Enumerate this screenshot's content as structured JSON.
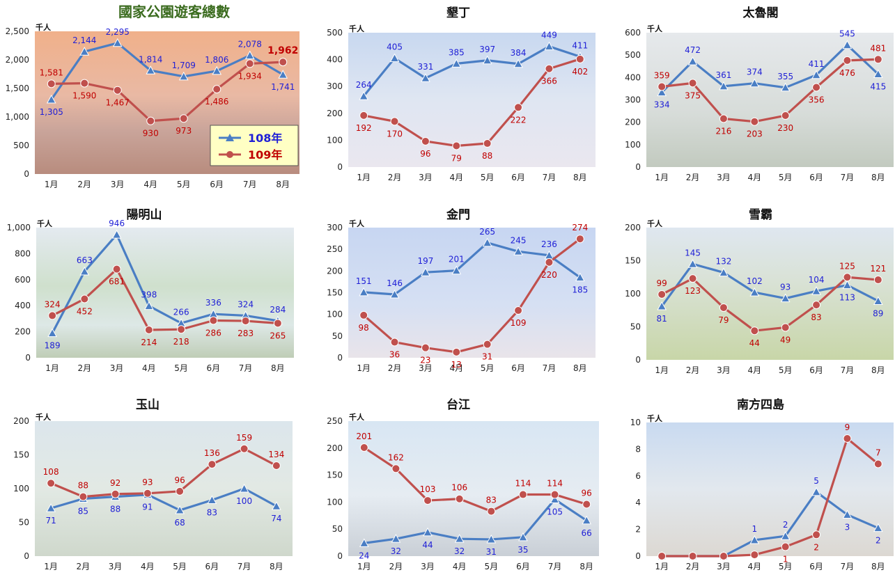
{
  "page": {
    "title": "國家公園遊客總數"
  },
  "colors": {
    "s108": "#4a7ec4",
    "s109": "#c0504d",
    "label108": "#1f1fd6",
    "label109": "#c00000"
  },
  "legend": {
    "s108": "108年",
    "s109": "109年"
  },
  "unit": "千人",
  "chart_data": [
    {
      "type": "line",
      "title": "國家公園遊客總數",
      "categories": [
        "1月",
        "2月",
        "3月",
        "4月",
        "5月",
        "6月",
        "7月",
        "8月"
      ],
      "ylim": [
        0,
        2500
      ],
      "yticks": [
        "0",
        "500",
        "1,000",
        "1,500",
        "2,000",
        "2,500"
      ],
      "series": [
        {
          "name": "108年",
          "values": [
            1305,
            2144,
            2295,
            1814,
            1709,
            1806,
            2078,
            1741
          ],
          "labels": [
            "1,305",
            "2,144",
            "2,295",
            "1,814",
            "1,709",
            "1,806",
            "2,078",
            "1,741"
          ]
        },
        {
          "name": "109年",
          "values": [
            1581,
            1590,
            1467,
            930,
            973,
            1486,
            1934,
            1962
          ],
          "labels": [
            "1,581",
            "1,590",
            "1,467",
            "930",
            "973",
            "1,486",
            "1,934",
            "1,962"
          ]
        }
      ]
    },
    {
      "type": "line",
      "title": "墾丁",
      "categories": [
        "1月",
        "2月",
        "3月",
        "4月",
        "5月",
        "6月",
        "7月",
        "8月"
      ],
      "ylim": [
        0,
        500
      ],
      "yticks": [
        "0",
        "100",
        "200",
        "300",
        "400",
        "500"
      ],
      "series": [
        {
          "name": "108年",
          "values": [
            264,
            405,
            331,
            385,
            397,
            384,
            449,
            411
          ],
          "labels": [
            "264",
            "405",
            "331",
            "385",
            "397",
            "384",
            "449",
            "411"
          ]
        },
        {
          "name": "109年",
          "values": [
            192,
            170,
            96,
            79,
            88,
            222,
            366,
            402
          ],
          "labels": [
            "192",
            "170",
            "96",
            "79",
            "88",
            "222",
            "366",
            "402"
          ]
        }
      ]
    },
    {
      "type": "line",
      "title": "太魯閣",
      "categories": [
        "1月",
        "2月",
        "3月",
        "4月",
        "5月",
        "6月",
        "7月",
        "8月"
      ],
      "ylim": [
        0,
        600
      ],
      "yticks": [
        "0",
        "100",
        "200",
        "300",
        "400",
        "500",
        "600"
      ],
      "series": [
        {
          "name": "108年",
          "values": [
            334,
            472,
            361,
            374,
            355,
            411,
            545,
            415
          ],
          "labels": [
            "334",
            "472",
            "361",
            "374",
            "355",
            "411",
            "545",
            "415"
          ]
        },
        {
          "name": "109年",
          "values": [
            359,
            375,
            216,
            203,
            230,
            356,
            476,
            481
          ],
          "labels": [
            "359",
            "375",
            "216",
            "203",
            "230",
            "356",
            "476",
            "481"
          ]
        }
      ]
    },
    {
      "type": "line",
      "title": "陽明山",
      "categories": [
        "1月",
        "2月",
        "3月",
        "4月",
        "5月",
        "6月",
        "7月",
        "8月"
      ],
      "ylim": [
        0,
        1000
      ],
      "yticks": [
        "0",
        "200",
        "400",
        "600",
        "800",
        "1,000"
      ],
      "series": [
        {
          "name": "108年",
          "values": [
            189,
            663,
            946,
            398,
            266,
            336,
            324,
            284
          ],
          "labels": [
            "189",
            "663",
            "946",
            "398",
            "266",
            "336",
            "324",
            "284"
          ]
        },
        {
          "name": "109年",
          "values": [
            324,
            452,
            681,
            214,
            218,
            286,
            283,
            265
          ],
          "labels": [
            "324",
            "452",
            "681",
            "214",
            "218",
            "286",
            "283",
            "265"
          ]
        }
      ]
    },
    {
      "type": "line",
      "title": "金門",
      "categories": [
        "1月",
        "2月",
        "3月",
        "4月",
        "5月",
        "6月",
        "7月",
        "8月"
      ],
      "ylim": [
        0,
        300
      ],
      "yticks": [
        "0",
        "50",
        "100",
        "150",
        "200",
        "250",
        "300"
      ],
      "series": [
        {
          "name": "108年",
          "values": [
            151,
            146,
            197,
            201,
            265,
            245,
            236,
            185
          ],
          "labels": [
            "151",
            "146",
            "197",
            "201",
            "265",
            "245",
            "236",
            "185"
          ]
        },
        {
          "name": "109年",
          "values": [
            98,
            36,
            23,
            13,
            31,
            109,
            220,
            274
          ],
          "labels": [
            "98",
            "36",
            "23",
            "13",
            "31",
            "109",
            "220",
            "274"
          ]
        }
      ]
    },
    {
      "type": "line",
      "title": "雪霸",
      "categories": [
        "1月",
        "2月",
        "3月",
        "4月",
        "5月",
        "6月",
        "7月",
        "8月"
      ],
      "ylim": [
        0,
        200
      ],
      "yticks": [
        "0",
        "50",
        "100",
        "150",
        "200"
      ],
      "series": [
        {
          "name": "108年",
          "values": [
            81,
            145,
            132,
            102,
            93,
            104,
            113,
            89
          ],
          "labels": [
            "81",
            "145",
            "132",
            "102",
            "93",
            "104",
            "113",
            "89"
          ]
        },
        {
          "name": "109年",
          "values": [
            99,
            123,
            79,
            44,
            49,
            83,
            125,
            121
          ],
          "labels": [
            "99",
            "123",
            "79",
            "44",
            "49",
            "83",
            "125",
            "121"
          ]
        }
      ]
    },
    {
      "type": "line",
      "title": "玉山",
      "categories": [
        "1月",
        "2月",
        "3月",
        "4月",
        "5月",
        "6月",
        "7月",
        "8月"
      ],
      "ylim": [
        0,
        200
      ],
      "yticks": [
        "0",
        "50",
        "100",
        "150",
        "200"
      ],
      "series": [
        {
          "name": "108年",
          "values": [
            71,
            85,
            88,
            91,
            68,
            83,
            100,
            74
          ],
          "labels": [
            "71",
            "85",
            "88",
            "91",
            "68",
            "83",
            "100",
            "74"
          ]
        },
        {
          "name": "109年",
          "values": [
            108,
            88,
            92,
            93,
            96,
            136,
            159,
            134
          ],
          "labels": [
            "108",
            "88",
            "92",
            "93",
            "96",
            "136",
            "159",
            "134"
          ]
        }
      ]
    },
    {
      "type": "line",
      "title": "台江",
      "categories": [
        "1月",
        "2月",
        "3月",
        "4月",
        "5月",
        "6月",
        "7月",
        "8月"
      ],
      "ylim": [
        0,
        250
      ],
      "yticks": [
        "0",
        "50",
        "100",
        "150",
        "200",
        "250"
      ],
      "series": [
        {
          "name": "108年",
          "values": [
            24,
            32,
            44,
            32,
            31,
            35,
            105,
            66
          ],
          "labels": [
            "24",
            "32",
            "44",
            "32",
            "31",
            "35",
            "105",
            "66"
          ]
        },
        {
          "name": "109年",
          "values": [
            201,
            162,
            103,
            106,
            83,
            114,
            114,
            96
          ],
          "labels": [
            "201",
            "162",
            "103",
            "106",
            "83",
            "114",
            "114",
            "96"
          ]
        }
      ]
    },
    {
      "type": "line",
      "title": "南方四島",
      "categories": [
        "1月",
        "2月",
        "3月",
        "4月",
        "5月",
        "6月",
        "7月",
        "8月"
      ],
      "ylim": [
        0,
        10
      ],
      "yticks": [
        "0",
        "2",
        "4",
        "6",
        "8",
        "10"
      ],
      "series": [
        {
          "name": "108年",
          "values": [
            0,
            0,
            0,
            1.2,
            1.5,
            4.8,
            3.1,
            2.1
          ],
          "labels": [
            "",
            "",
            "",
            "1",
            "2",
            "5",
            "3",
            "2"
          ]
        },
        {
          "name": "109年",
          "values": [
            0,
            0,
            0,
            0.1,
            0.7,
            1.6,
            8.8,
            6.9
          ],
          "labels": [
            "",
            "",
            "",
            "",
            "1",
            "2",
            "9",
            "7"
          ]
        }
      ]
    }
  ]
}
